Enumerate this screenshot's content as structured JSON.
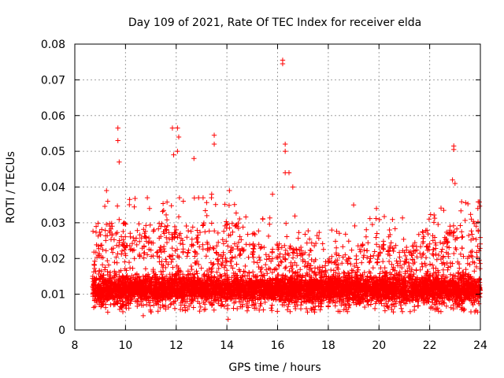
{
  "chart_data": {
    "type": "scatter",
    "title": "Day 109 of 2021, Rate Of TEC Index for receiver elda",
    "xlabel": "GPS time / hours",
    "ylabel": "ROTI / TECUs",
    "xlim": [
      8,
      24
    ],
    "ylim": [
      0,
      0.08
    ],
    "x_ticks": [
      8,
      10,
      12,
      14,
      16,
      18,
      20,
      22,
      24
    ],
    "x_tick_labels": [
      "8",
      "10",
      "12",
      "14",
      "16",
      "18",
      "20",
      "22",
      "24"
    ],
    "y_ticks": [
      0,
      0.01,
      0.02,
      0.03,
      0.04,
      0.05,
      0.06,
      0.07,
      0.08
    ],
    "y_tick_labels": [
      "0",
      "0.01",
      "0.02",
      "0.03",
      "0.04",
      "0.05",
      "0.06",
      "0.07",
      "0.08"
    ],
    "grid": true,
    "marker": "+",
    "series": [
      {
        "name": "ROTI",
        "color": "#ff0000",
        "data_start_hour": 8.7,
        "data_end_hour": 24.0,
        "typical_range": [
          0.005,
          0.02
        ],
        "notable_points": [
          {
            "x": 9.7,
            "y": 0.0565
          },
          {
            "x": 9.7,
            "y": 0.053
          },
          {
            "x": 9.75,
            "y": 0.047
          },
          {
            "x": 9.25,
            "y": 0.039
          },
          {
            "x": 9.3,
            "y": 0.036
          },
          {
            "x": 11.85,
            "y": 0.0565
          },
          {
            "x": 12.05,
            "y": 0.0565
          },
          {
            "x": 12.1,
            "y": 0.054
          },
          {
            "x": 11.9,
            "y": 0.049
          },
          {
            "x": 12.05,
            "y": 0.05
          },
          {
            "x": 12.7,
            "y": 0.048
          },
          {
            "x": 13.5,
            "y": 0.0545
          },
          {
            "x": 13.5,
            "y": 0.052
          },
          {
            "x": 13.4,
            "y": 0.038
          },
          {
            "x": 14.1,
            "y": 0.039
          },
          {
            "x": 16.2,
            "y": 0.0755
          },
          {
            "x": 16.2,
            "y": 0.0745
          },
          {
            "x": 16.3,
            "y": 0.052
          },
          {
            "x": 16.3,
            "y": 0.05
          },
          {
            "x": 16.3,
            "y": 0.044
          },
          {
            "x": 16.45,
            "y": 0.044
          },
          {
            "x": 15.8,
            "y": 0.038
          },
          {
            "x": 16.6,
            "y": 0.04
          },
          {
            "x": 19.0,
            "y": 0.035
          },
          {
            "x": 19.9,
            "y": 0.034
          },
          {
            "x": 22.95,
            "y": 0.0515
          },
          {
            "x": 22.95,
            "y": 0.0505
          },
          {
            "x": 22.9,
            "y": 0.042
          },
          {
            "x": 23.0,
            "y": 0.041
          },
          {
            "x": 23.9,
            "y": 0.034
          },
          {
            "x": 14.05,
            "y": 0.003
          },
          {
            "x": 10.7,
            "y": 0.004
          },
          {
            "x": 9.3,
            "y": 0.005
          }
        ]
      }
    ]
  }
}
